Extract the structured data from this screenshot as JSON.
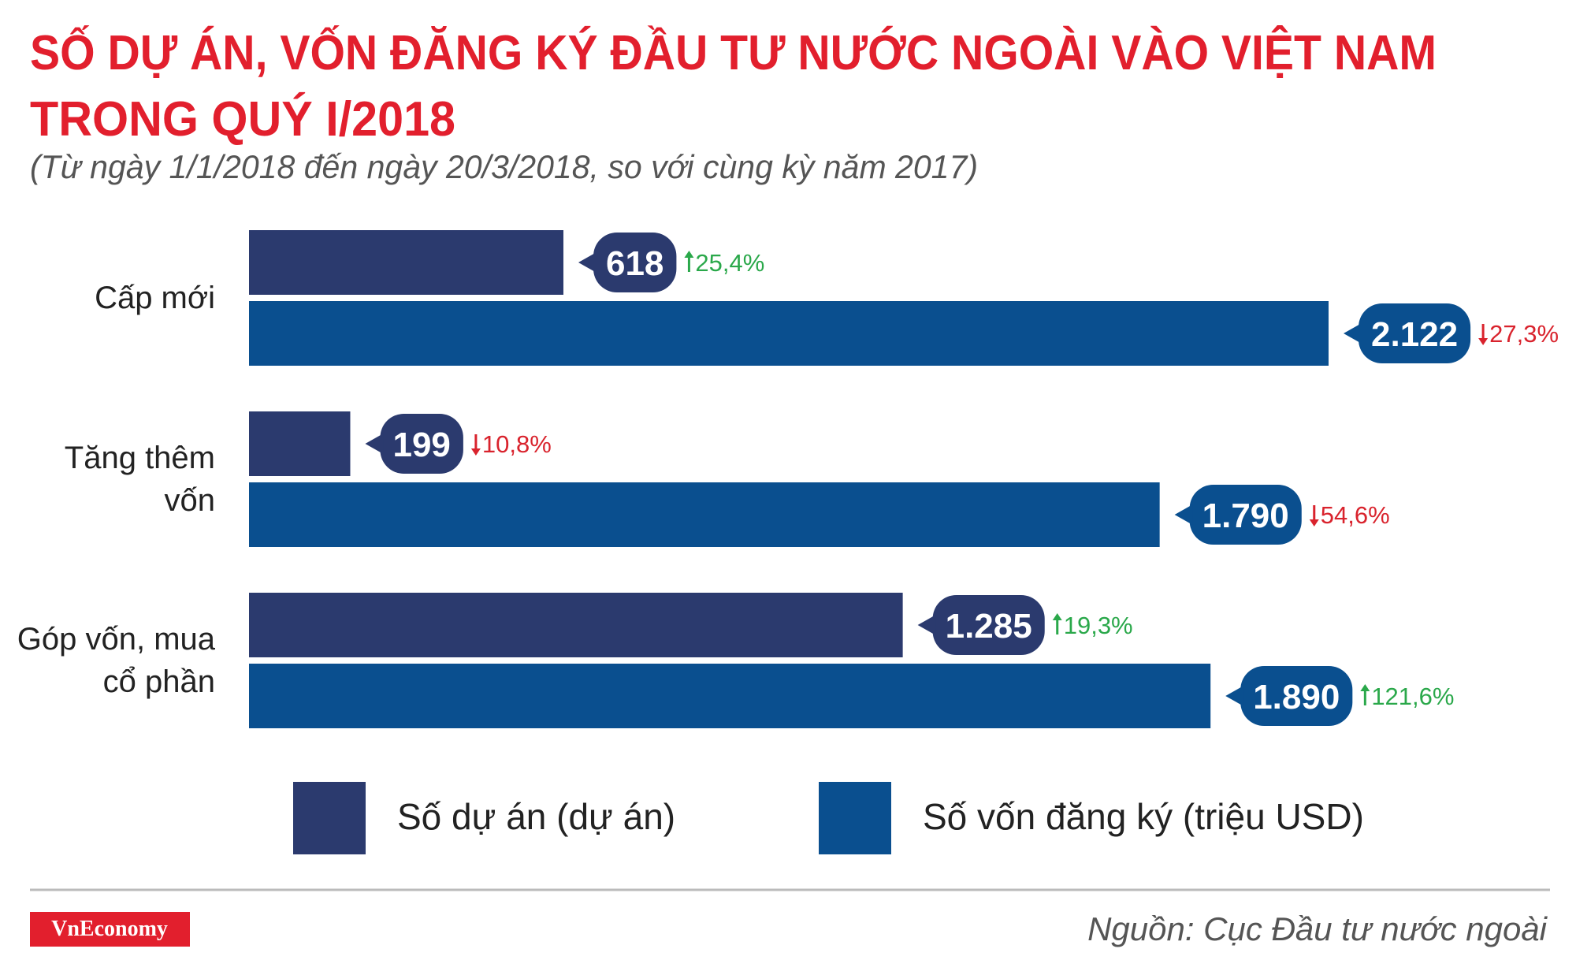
{
  "chart_data": {
    "type": "bar",
    "orientation": "horizontal",
    "title": [
      "SỐ DỰ ÁN, VỐN ĐĂNG KÝ ĐẦU TƯ NƯỚC NGOÀI VÀO VIỆT NAM",
      "TRONG QUÝ I/2018"
    ],
    "subtitle": "(Từ ngày 1/1/2018 đến ngày 20/3/2018, so với cùng kỳ năm 2017)",
    "categories": [
      "Cấp mới",
      "Tăng thêm vốn",
      "Góp vốn, mua cổ phần"
    ],
    "series": [
      {
        "name": "Số dự án (dự án)",
        "color": "#2b3a6e",
        "values": [
          618,
          199,
          1285
        ],
        "value_labels": [
          "618",
          "199",
          "1.285"
        ],
        "changes": [
          25.4,
          -10.8,
          19.3
        ],
        "change_labels": [
          "25,4%",
          "10,8%",
          "19,3%"
        ]
      },
      {
        "name": "Số vốn đăng ký (triệu USD)",
        "color": "#0a4f8f",
        "values": [
          2122,
          1790,
          1890
        ],
        "value_labels": [
          "2.122",
          "1.790",
          "1.890"
        ],
        "changes": [
          -27.3,
          -54.6,
          121.6
        ],
        "change_labels": [
          "27,3%",
          "54,6%",
          "121,6%"
        ]
      }
    ],
    "up_color": "#2aa84a",
    "down_color": "#d9232d",
    "title_color": "#e21f2d",
    "legend": "bottom",
    "brand": "VnEconomy",
    "source": "Nguồn: Cục Đầu tư nước ngoài"
  }
}
